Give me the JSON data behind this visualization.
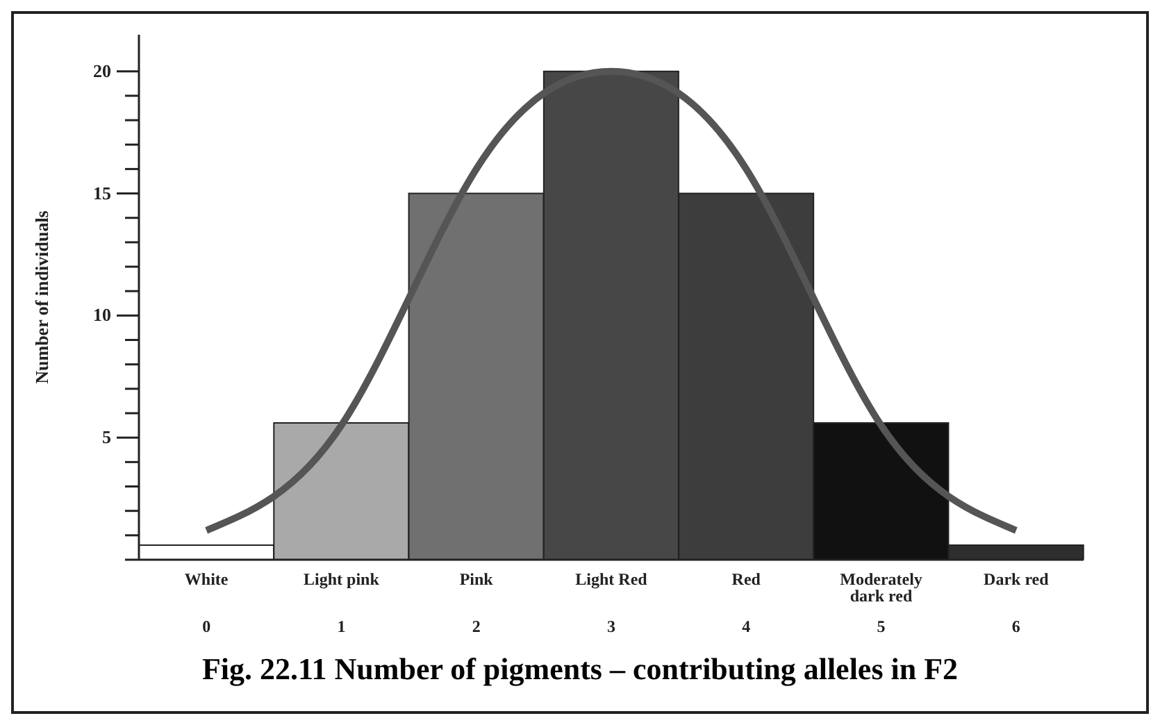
{
  "chart_data": {
    "type": "bar",
    "title": "Fig. 22.11 Number of pigments – contributing alleles in F2",
    "ylabel": "Number of individuals",
    "categories": [
      "White\n0",
      "Light pink\n1",
      "Pink\n2",
      "Light Red\n3",
      "Red\n4",
      "Moderately\ndark red\n5",
      "Dark red\n6"
    ],
    "series": [
      {
        "values": [
          0.6,
          5.6,
          15,
          20,
          15,
          5.6,
          0.6
        ],
        "colors": [
          "#ffffff",
          "#a9a9a9",
          "#707070",
          "#474747",
          "#3d3d3d",
          "#111111",
          "#2e2e2e"
        ]
      },
      {
        "type": "line",
        "color": "#555555",
        "values": [
          1.2,
          5.5,
          16,
          20,
          16,
          5.5,
          1.2
        ]
      }
    ],
    "ylim": [
      0,
      21.5
    ],
    "yticks": [
      {
        "value": 0,
        "label": null
      },
      {
        "value": 1,
        "label": null
      },
      {
        "value": 2,
        "label": null
      },
      {
        "value": 3,
        "label": null
      },
      {
        "value": 4,
        "label": null
      },
      5,
      {
        "value": 6,
        "label": null
      },
      {
        "value": 7,
        "label": null
      },
      {
        "value": 8,
        "label": null
      },
      {
        "value": 9,
        "label": null
      },
      10,
      {
        "value": 11,
        "label": null
      },
      {
        "value": 12,
        "label": null
      },
      {
        "value": 13,
        "label": null
      },
      {
        "value": 14,
        "label": null
      },
      15,
      {
        "value": 16,
        "label": null
      },
      {
        "value": 17,
        "label": null
      },
      {
        "value": 18,
        "label": null
      },
      {
        "value": 19,
        "label": null
      },
      20
    ],
    "grid": false,
    "legend": false,
    "marker": "none"
  }
}
